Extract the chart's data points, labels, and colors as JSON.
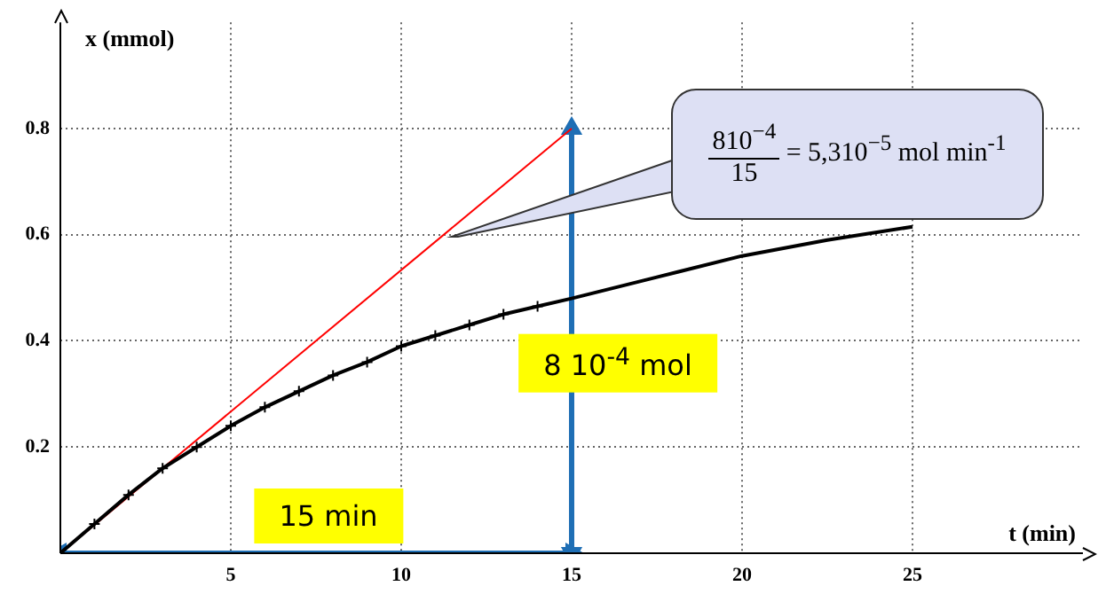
{
  "chart_data": {
    "type": "line",
    "xlabel": "t (min)",
    "ylabel": "x (mmol)",
    "xlim": [
      0,
      30
    ],
    "ylim": [
      0,
      1
    ],
    "xticks": [
      5,
      10,
      15,
      20,
      25
    ],
    "yticks": [
      0.2,
      0.4,
      0.6,
      0.8
    ],
    "grid": true,
    "legend": false,
    "series": [
      {
        "color": "#000000",
        "marker": "cross",
        "x": [
          0,
          1,
          2,
          3,
          4,
          5,
          6,
          7,
          8,
          9,
          10,
          11,
          12,
          13,
          14
        ],
        "values": [
          0,
          0.055,
          0.11,
          0.16,
          0.2,
          0.24,
          0.275,
          0.305,
          0.335,
          0.36,
          0.39,
          0.41,
          0.43,
          0.45,
          0.465
        ]
      },
      {
        "color": "#000000",
        "marker": "none",
        "x": [
          14,
          15,
          17.5,
          20,
          22.5,
          25
        ],
        "values": [
          0.465,
          0.48,
          0.52,
          0.56,
          0.59,
          0.615
        ]
      },
      {
        "color": "#ff0000",
        "marker": "none",
        "x": [
          0,
          15
        ],
        "values": [
          0,
          0.8
        ]
      },
      {
        "color": "#1f6fb5",
        "marker": "triangle",
        "x": [
          0,
          15
        ],
        "values": [
          0,
          0
        ]
      },
      {
        "color": "#1f6fb5",
        "marker": "triangle",
        "x": [
          15,
          15
        ],
        "values": [
          0,
          0.8
        ]
      }
    ],
    "annotations": [
      "15 min",
      "8 10$^{-4}$ mol",
      "810$^{−4}$",
      "15",
      "= 5,310$^{−5}$ mol min$^{-1}$"
    ]
  }
}
